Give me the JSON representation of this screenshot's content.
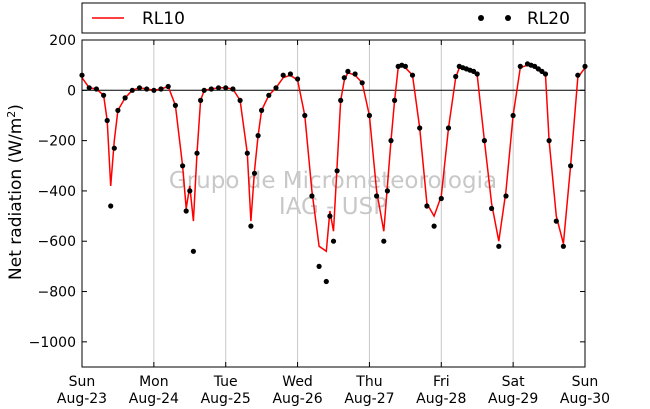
{
  "chart_data": {
    "type": "line",
    "title": "",
    "ylabel": "Net radiation (W/m²)",
    "ylabel_main": "Net radiation (W/m",
    "ylabel_sup": "2",
    "ylabel_close": ")",
    "xlabel": "",
    "ylim": [
      -1100,
      200
    ],
    "yticks": [
      200,
      0,
      -200,
      -400,
      -600,
      -800,
      -1000
    ],
    "ytick_labels": [
      "200",
      "0",
      "−200",
      "−400",
      "−600",
      "−800",
      "−1000"
    ],
    "xlim_days": [
      0,
      7
    ],
    "xtick_days": [
      0,
      1,
      2,
      3,
      4,
      5,
      6,
      7
    ],
    "xtick_top": [
      "Sun",
      "Mon",
      "Tue",
      "Wed",
      "Thu",
      "Fri",
      "Sat",
      "Sun"
    ],
    "xtick_bottom": [
      "Aug-23",
      "Aug-24",
      "Aug-25",
      "Aug-26",
      "Aug-27",
      "Aug-28",
      "Aug-29",
      "Aug-30"
    ],
    "grid": "vertical",
    "zero_line": true,
    "legend_position": "top, above plot",
    "watermark": [
      "Grupo de Micrometeorologia",
      "IAG - USP"
    ],
    "series": [
      {
        "name": "RL10",
        "style": "line",
        "color": "#ff0000",
        "x": [
          0,
          0.1,
          0.2,
          0.3,
          0.35,
          0.4,
          0.45,
          0.5,
          0.6,
          0.7,
          0.8,
          0.9,
          1.0,
          1.1,
          1.2,
          1.3,
          1.4,
          1.45,
          1.5,
          1.55,
          1.6,
          1.65,
          1.7,
          1.8,
          1.9,
          2.0,
          2.1,
          2.2,
          2.3,
          2.35,
          2.4,
          2.45,
          2.5,
          2.6,
          2.7,
          2.8,
          2.9,
          3.0,
          3.1,
          3.2,
          3.3,
          3.4,
          3.45,
          3.5,
          3.55,
          3.6,
          3.65,
          3.7,
          3.8,
          3.9,
          4.0,
          4.1,
          4.2,
          4.25,
          4.3,
          4.35,
          4.4,
          4.45,
          4.5,
          4.6,
          4.7,
          4.8,
          4.9,
          5.0,
          5.1,
          5.2,
          5.25,
          5.3,
          5.35,
          5.4,
          5.45,
          5.5,
          5.6,
          5.7,
          5.8,
          5.9,
          6.0,
          6.1,
          6.2,
          6.25,
          6.3,
          6.35,
          6.4,
          6.45,
          6.5,
          6.6,
          6.7,
          6.8,
          6.9,
          7.0
        ],
        "values": [
          50,
          10,
          5,
          -20,
          -120,
          -380,
          -200,
          -80,
          -30,
          0,
          10,
          5,
          0,
          5,
          15,
          -60,
          -300,
          -470,
          -380,
          -520,
          -250,
          -40,
          0,
          5,
          10,
          10,
          5,
          -40,
          -250,
          -520,
          -320,
          -180,
          -80,
          -20,
          10,
          50,
          60,
          40,
          -100,
          -400,
          -620,
          -640,
          -480,
          -560,
          -300,
          -40,
          40,
          70,
          60,
          30,
          -100,
          -400,
          -560,
          -380,
          -200,
          -40,
          90,
          95,
          90,
          60,
          -150,
          -450,
          -500,
          -420,
          -150,
          50,
          90,
          85,
          80,
          75,
          70,
          60,
          -200,
          -450,
          -600,
          -400,
          -100,
          90,
          100,
          95,
          90,
          80,
          70,
          60,
          -200,
          -500,
          -610,
          -300,
          50,
          90
        ]
      },
      {
        "name": "RL20",
        "style": "dots",
        "color": "#000000",
        "x": [
          0,
          0.1,
          0.2,
          0.3,
          0.35,
          0.4,
          0.45,
          0.5,
          0.6,
          0.7,
          0.8,
          0.9,
          1.0,
          1.1,
          1.2,
          1.3,
          1.4,
          1.45,
          1.5,
          1.55,
          1.6,
          1.65,
          1.7,
          1.8,
          1.9,
          2.0,
          2.1,
          2.2,
          2.3,
          2.35,
          2.4,
          2.45,
          2.5,
          2.6,
          2.7,
          2.8,
          2.9,
          3.0,
          3.1,
          3.2,
          3.3,
          3.4,
          3.45,
          3.5,
          3.55,
          3.6,
          3.65,
          3.7,
          3.8,
          3.9,
          4.0,
          4.1,
          4.2,
          4.25,
          4.3,
          4.35,
          4.4,
          4.45,
          4.5,
          4.6,
          4.7,
          4.8,
          4.9,
          5.0,
          5.1,
          5.2,
          5.25,
          5.3,
          5.35,
          5.4,
          5.45,
          5.5,
          5.6,
          5.7,
          5.8,
          5.9,
          6.0,
          6.1,
          6.2,
          6.25,
          6.3,
          6.35,
          6.4,
          6.45,
          6.5,
          6.6,
          6.7,
          6.8,
          6.9,
          7.0
        ],
        "values": [
          60,
          10,
          5,
          -20,
          -120,
          -460,
          -230,
          -80,
          -30,
          0,
          10,
          5,
          0,
          5,
          15,
          -60,
          -300,
          -480,
          -400,
          -640,
          -250,
          -40,
          0,
          5,
          10,
          10,
          5,
          -40,
          -250,
          -540,
          -330,
          -180,
          -80,
          -20,
          10,
          60,
          65,
          45,
          -100,
          -420,
          -700,
          -760,
          -500,
          -600,
          -320,
          -40,
          50,
          75,
          65,
          30,
          -100,
          -420,
          -600,
          -400,
          -200,
          -40,
          95,
          100,
          95,
          60,
          -150,
          -460,
          -540,
          -430,
          -150,
          55,
          95,
          90,
          85,
          80,
          75,
          65,
          -200,
          -470,
          -620,
          -420,
          -100,
          95,
          105,
          100,
          95,
          85,
          75,
          65,
          -200,
          -520,
          -620,
          -300,
          60,
          95
        ]
      }
    ]
  }
}
